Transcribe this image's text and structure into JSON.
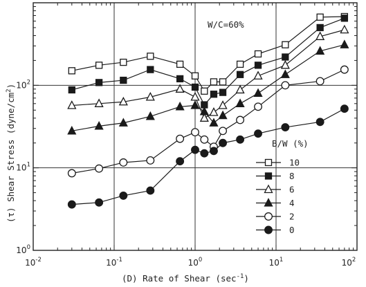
{
  "chart_data": {
    "type": "scatter",
    "title": "",
    "xlabel": "(D) Rate of Shear (sec",
    "xlabel_exponent": "-1",
    "xlabel_close": ")",
    "ylabel": "(τ) Shear Stress (dyne/cm",
    "ylabel_exponent": "2",
    "ylabel_close": ")",
    "xscale": "log",
    "yscale": "log",
    "xlim": [
      0.01,
      100
    ],
    "ylim": [
      1,
      1000
    ],
    "x_ticks": [
      {
        "value": 0.01,
        "base": "10",
        "exp": "-2"
      },
      {
        "value": 0.1,
        "base": "10",
        "exp": "-1"
      },
      {
        "value": 1,
        "base": "10",
        "exp": "0"
      },
      {
        "value": 10,
        "base": "10",
        "exp": "1"
      },
      {
        "value": 100,
        "base": "10",
        "exp": "2"
      }
    ],
    "y_ticks": [
      {
        "value": 1,
        "base": "10",
        "exp": "0"
      },
      {
        "value": 10,
        "base": "10",
        "exp": "1"
      },
      {
        "value": 100,
        "base": "10",
        "exp": "2"
      }
    ],
    "grid": "major only",
    "annotation": "W/C=60%",
    "legend_title": "B/W (%)",
    "legend_position": "lower-right",
    "series": [
      {
        "name": "10",
        "marker": "square",
        "fill": "open",
        "x": [
          0.03,
          0.065,
          0.13,
          0.28,
          0.65,
          1.0,
          1.3,
          1.7,
          2.2,
          3.6,
          6.0,
          13.0,
          35.0,
          70.0
        ],
        "y": [
          150,
          175,
          190,
          225,
          180,
          130,
          85,
          110,
          110,
          180,
          240,
          310,
          670,
          680
        ]
      },
      {
        "name": "8",
        "marker": "square",
        "fill": "filled",
        "x": [
          0.03,
          0.065,
          0.13,
          0.28,
          0.65,
          1.0,
          1.3,
          1.7,
          2.2,
          3.6,
          6.0,
          13.0,
          35.0,
          70.0
        ],
        "y": [
          88,
          108,
          115,
          155,
          120,
          95,
          58,
          78,
          82,
          135,
          175,
          220,
          500,
          650
        ]
      },
      {
        "name": "6",
        "marker": "triangle",
        "fill": "open",
        "x": [
          0.03,
          0.065,
          0.13,
          0.28,
          0.65,
          1.0,
          1.3,
          1.7,
          2.2,
          3.6,
          6.0,
          13.0,
          35.0,
          70.0
        ],
        "y": [
          57,
          60,
          63,
          72,
          90,
          72,
          40,
          47,
          57,
          88,
          130,
          175,
          390,
          470
        ]
      },
      {
        "name": "4",
        "marker": "triangle",
        "fill": "filled",
        "x": [
          0.03,
          0.065,
          0.13,
          0.28,
          0.65,
          1.0,
          1.3,
          1.7,
          2.2,
          3.6,
          6.0,
          13.0,
          35.0,
          70.0
        ],
        "y": [
          28,
          32,
          35,
          42,
          55,
          57,
          48,
          35,
          43,
          60,
          80,
          135,
          260,
          310
        ]
      },
      {
        "name": "2",
        "marker": "circle",
        "fill": "open",
        "x": [
          0.03,
          0.065,
          0.13,
          0.28,
          0.65,
          1.0,
          1.3,
          1.7,
          2.2,
          3.6,
          6.0,
          13.0,
          35.0,
          70.0
        ],
        "y": [
          8.6,
          9.8,
          11.6,
          12.3,
          22.5,
          27,
          22,
          18,
          28,
          38,
          55,
          100,
          112,
          155
        ]
      },
      {
        "name": "0",
        "marker": "circle",
        "fill": "filled",
        "x": [
          0.03,
          0.065,
          0.13,
          0.28,
          0.65,
          1.0,
          1.3,
          1.7,
          2.2,
          3.6,
          6.0,
          13.0,
          35.0,
          70.0
        ],
        "y": [
          3.6,
          3.8,
          4.6,
          5.3,
          12,
          16.5,
          15,
          16,
          20,
          22,
          26,
          31,
          36,
          52
        ]
      }
    ]
  }
}
